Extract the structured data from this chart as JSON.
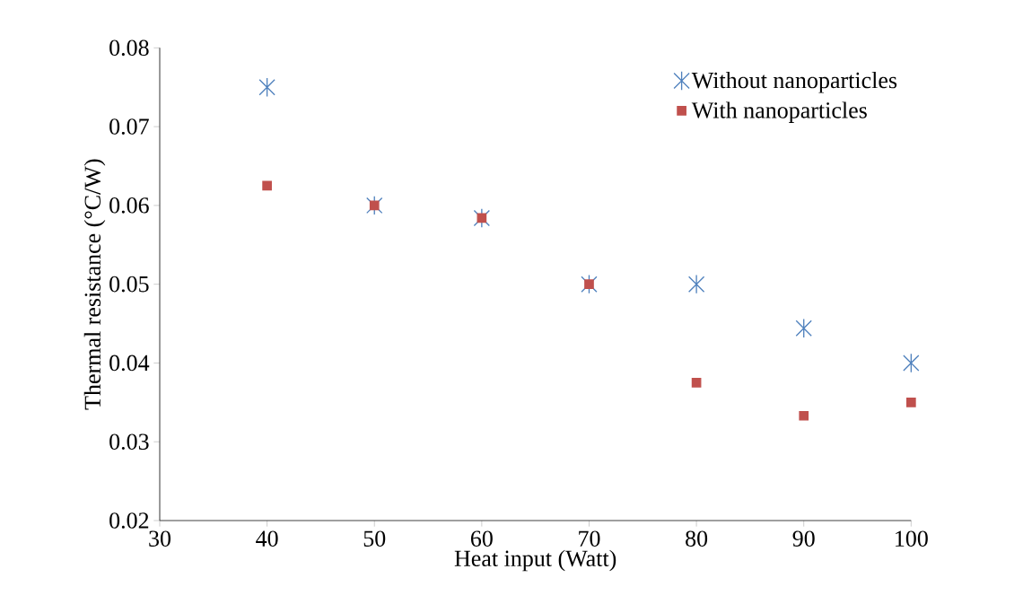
{
  "chart_data": {
    "type": "scatter",
    "xlabel": "Heat input (Watt)",
    "ylabel": "Thermal  resistance (°C/W)",
    "x": [
      40,
      50,
      60,
      70,
      80,
      90,
      100
    ],
    "series": [
      {
        "name": "Without nanoparticles",
        "color": "#4f81bd",
        "marker": "cross",
        "values": [
          0.075,
          0.06,
          0.0584,
          0.05,
          0.05,
          0.0444,
          0.04
        ]
      },
      {
        "name": "With nanoparticles",
        "color": "#c0504d",
        "marker": "square",
        "values": [
          0.0625,
          0.06,
          0.0584,
          0.05,
          0.0375,
          0.0333,
          0.035
        ]
      }
    ],
    "xlim": [
      30,
      100
    ],
    "xticks": [
      30,
      40,
      50,
      60,
      70,
      80,
      90,
      100
    ],
    "ylim": [
      0.02,
      0.08
    ],
    "yticks": [
      {
        "value": 0.02,
        "label": "0.02"
      },
      {
        "value": 0.03,
        "label": "0.03"
      },
      {
        "value": 0.04,
        "label": "0.04"
      },
      {
        "value": 0.05,
        "label": "0.05"
      },
      {
        "value": 0.06,
        "label": "0.06"
      },
      {
        "value": 0.07,
        "label": "0.07"
      },
      {
        "value": 0.08,
        "label": "0.08"
      }
    ],
    "grid": false,
    "legend": "top right"
  }
}
